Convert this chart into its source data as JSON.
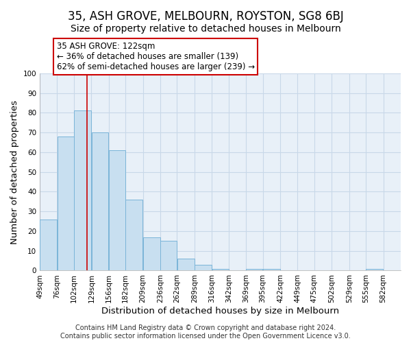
{
  "title": "35, ASH GROVE, MELBOURN, ROYSTON, SG8 6BJ",
  "subtitle": "Size of property relative to detached houses in Melbourn",
  "xlabel": "Distribution of detached houses by size in Melbourn",
  "ylabel": "Number of detached properties",
  "bar_edges": [
    49,
    76,
    102,
    129,
    156,
    182,
    209,
    236,
    262,
    289,
    316,
    342,
    369,
    395,
    422,
    449,
    475,
    502,
    529,
    555,
    582
  ],
  "bar_values": [
    26,
    68,
    81,
    70,
    61,
    36,
    17,
    15,
    6,
    3,
    1,
    0,
    1,
    1,
    0,
    0,
    0,
    0,
    0,
    1
  ],
  "bar_color": "#c8dff0",
  "bar_edge_color": "#7ab4d8",
  "property_line_x": 122,
  "property_line_color": "#cc0000",
  "annotation_title": "35 ASH GROVE: 122sqm",
  "annotation_line1": "← 36% of detached houses are smaller (139)",
  "annotation_line2": "62% of semi-detached houses are larger (239) →",
  "annotation_box_color": "#ffffff",
  "annotation_box_edge_color": "#cc0000",
  "ylim": [
    0,
    100
  ],
  "tick_labels": [
    "49sqm",
    "76sqm",
    "102sqm",
    "129sqm",
    "156sqm",
    "182sqm",
    "209sqm",
    "236sqm",
    "262sqm",
    "289sqm",
    "316sqm",
    "342sqm",
    "369sqm",
    "395sqm",
    "422sqm",
    "449sqm",
    "475sqm",
    "502sqm",
    "529sqm",
    "555sqm",
    "582sqm"
  ],
  "footnote1": "Contains HM Land Registry data © Crown copyright and database right 2024.",
  "footnote2": "Contains public sector information licensed under the Open Government Licence v3.0.",
  "background_color": "#ffffff",
  "plot_bg_color": "#e8f0f8",
  "grid_color": "#c8d8e8",
  "title_fontsize": 12,
  "subtitle_fontsize": 10,
  "axis_label_fontsize": 9.5,
  "tick_fontsize": 7.5,
  "annotation_fontsize": 8.5,
  "footnote_fontsize": 7
}
